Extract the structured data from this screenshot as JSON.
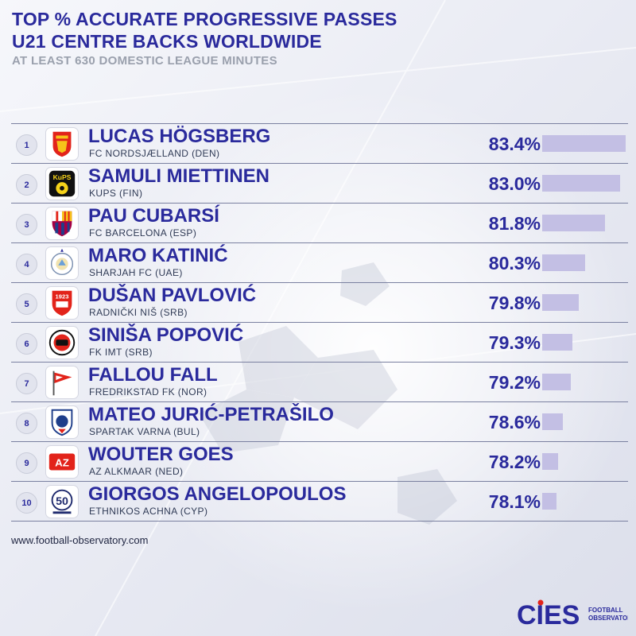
{
  "header": {
    "title_line1": "TOP % ACCURATE PROGRESSIVE PASSES",
    "title_line2": "U21 CENTRE BACKS WORLDWIDE",
    "subtitle": "AT LEAST 630 DOMESTIC LEAGUE MINUTES"
  },
  "chart_data": {
    "type": "bar",
    "orientation": "horizontal",
    "title": "TOP % ACCURATE PROGRESSIVE PASSES",
    "subtitle": "U21 CENTRE BACKS WORLDWIDE",
    "categories": [
      "LUCAS HÖGSBERG",
      "SAMULI MIETTINEN",
      "PAU CUBARSÍ",
      "MARO KATINIĆ",
      "DUŠAN PAVLOVIĆ",
      "SINIŠA POPOVIĆ",
      "FALLOU FALL",
      "MATEO JURIĆ-PETRAŠILO",
      "WOUTER GOES",
      "GIORGOS ANGELOPOULOS"
    ],
    "values": [
      83.4,
      83.0,
      81.8,
      80.3,
      79.8,
      79.3,
      79.2,
      78.6,
      78.2,
      78.1
    ],
    "unit": "%",
    "bar_scale_min": 77.0,
    "bar_color": "#c3bfe4"
  },
  "rows": [
    {
      "rank": "1",
      "name": "LUCAS HÖGSBERG",
      "club": "FC NORDSJÆLLAND (DEN)",
      "value": "83.4%",
      "logo": "fc-nordsjaelland-logo"
    },
    {
      "rank": "2",
      "name": "SAMULI MIETTINEN",
      "club": "KUPS (FIN)",
      "value": "83.0%",
      "logo": "kups-logo",
      "logo_text": "KuPS"
    },
    {
      "rank": "3",
      "name": "PAU CUBARSÍ",
      "club": "FC BARCELONA (ESP)",
      "value": "81.8%",
      "logo": "fc-barcelona-logo"
    },
    {
      "rank": "4",
      "name": "MARO KATINIĆ",
      "club": "SHARJAH FC (UAE)",
      "value": "80.3%",
      "logo": "sharjah-fc-logo"
    },
    {
      "rank": "5",
      "name": "DUŠAN PAVLOVIĆ",
      "club": "RADNIČKI NIŠ (SRB)",
      "value": "79.8%",
      "logo": "radnicki-nis-logo",
      "logo_text": "1923"
    },
    {
      "rank": "6",
      "name": "SINIŠA POPOVIĆ",
      "club": "FK IMT (SRB)",
      "value": "79.3%",
      "logo": "fk-imt-logo"
    },
    {
      "rank": "7",
      "name": "FALLOU FALL",
      "club": "FREDRIKSTAD FK (NOR)",
      "value": "79.2%",
      "logo": "fredrikstad-fk-logo"
    },
    {
      "rank": "8",
      "name": "MATEO JURIĆ-PETRAŠILO",
      "club": "SPARTAK VARNA (BUL)",
      "value": "78.6%",
      "logo": "spartak-varna-logo"
    },
    {
      "rank": "9",
      "name": "WOUTER GOES",
      "club": "AZ ALKMAAR (NED)",
      "value": "78.2%",
      "logo": "az-alkmaar-logo",
      "logo_text": "AZ"
    },
    {
      "rank": "10",
      "name": "GIORGOS ANGELOPOULOS",
      "club": "ETHNIKOS ACHNA (CYP)",
      "value": "78.1%",
      "logo": "ethnikos-achna-logo",
      "logo_text": "50"
    }
  ],
  "footer": {
    "url": "www.football-observatory.com",
    "brand": "CIES",
    "brand_sub_line1": "FOOTBALL",
    "brand_sub_line2": "OBSERVATORY"
  },
  "colors": {
    "title": "#2a2a9c",
    "subtitle": "#9aa0ad",
    "bar": "#c3bfe4",
    "accent_red": "#e2231a"
  }
}
